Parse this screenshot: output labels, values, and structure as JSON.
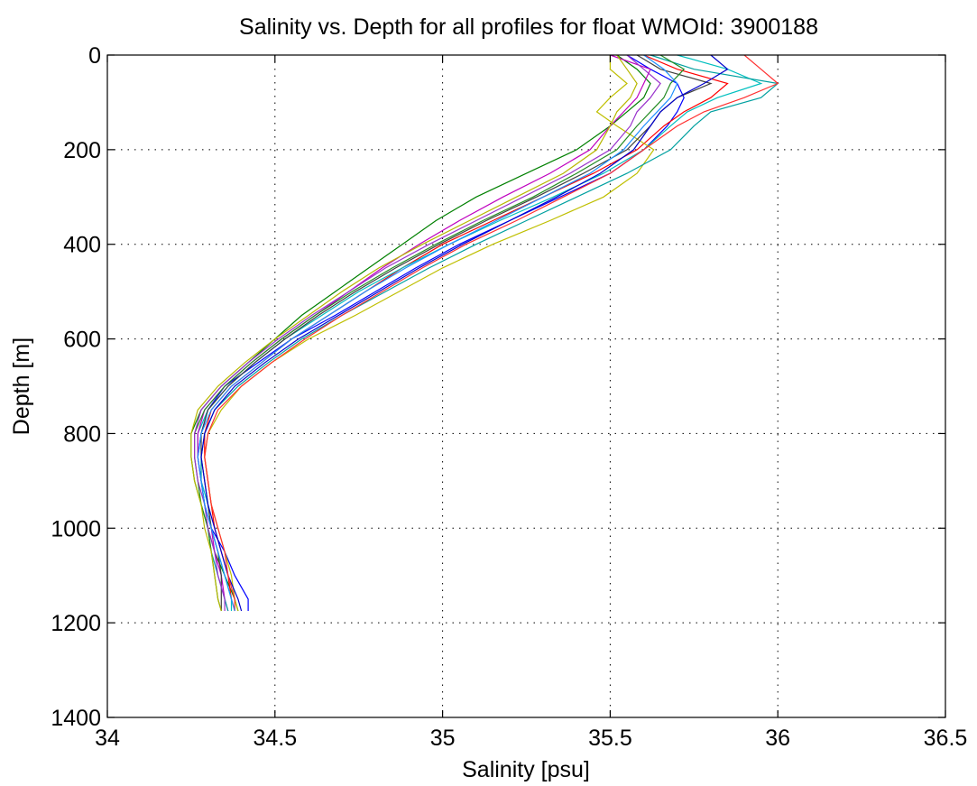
{
  "chart_data": {
    "type": "line",
    "title": "Salinity vs. Depth for all profiles for float WMOId: 3900188",
    "xlabel": "Salinity [psu]",
    "ylabel": "Depth [m]",
    "xlim": [
      34,
      36.5
    ],
    "ylim": [
      0,
      1400
    ],
    "y_reversed": true,
    "grid": true,
    "legend": "none",
    "x_ticks": [
      "34",
      "34.5",
      "35",
      "35.5",
      "36",
      "36.5"
    ],
    "y_ticks": [
      "0",
      "200",
      "400",
      "600",
      "800",
      "1000",
      "1200",
      "1400"
    ],
    "depth": [
      0,
      30,
      60,
      90,
      120,
      150,
      200,
      250,
      300,
      350,
      400,
      450,
      500,
      550,
      600,
      650,
      700,
      750,
      800,
      850,
      900,
      950,
      1000,
      1050,
      1100,
      1150,
      1175
    ],
    "series": [
      {
        "color": "#0000ff",
        "values": [
          35.55,
          35.62,
          35.7,
          35.72,
          35.7,
          35.67,
          35.6,
          35.5,
          35.35,
          35.2,
          35.05,
          34.92,
          34.8,
          34.68,
          34.55,
          34.45,
          34.35,
          34.3,
          34.28,
          34.27,
          34.28,
          34.29,
          34.31,
          34.35,
          34.38,
          34.42,
          34.42
        ]
      },
      {
        "color": "#008000",
        "values": [
          35.52,
          35.58,
          35.62,
          35.6,
          35.55,
          35.5,
          35.4,
          35.25,
          35.1,
          34.98,
          34.88,
          34.78,
          34.68,
          34.58,
          34.5,
          34.42,
          34.34,
          34.28,
          34.25,
          34.25,
          34.26,
          34.28,
          34.3,
          34.32,
          34.35,
          34.38,
          34.39
        ]
      },
      {
        "color": "#ff0000",
        "values": [
          35.6,
          35.7,
          35.85,
          35.8,
          35.72,
          35.66,
          35.58,
          35.45,
          35.3,
          35.15,
          35.0,
          34.88,
          34.77,
          34.66,
          34.55,
          34.46,
          34.37,
          34.31,
          34.29,
          34.29,
          34.3,
          34.31,
          34.32,
          34.34,
          34.36,
          34.37,
          34.38
        ]
      },
      {
        "color": "#00bfbf",
        "values": [
          35.7,
          35.85,
          35.95,
          35.82,
          35.73,
          35.68,
          35.6,
          35.48,
          35.33,
          35.17,
          35.02,
          34.88,
          34.75,
          34.64,
          34.53,
          34.44,
          34.36,
          34.3,
          34.27,
          34.27,
          34.28,
          34.3,
          34.31,
          34.33,
          34.35,
          34.37,
          34.37
        ]
      },
      {
        "color": "#bf00bf",
        "values": [
          35.5,
          35.62,
          35.6,
          35.58,
          35.54,
          35.5,
          35.44,
          35.32,
          35.18,
          35.05,
          34.93,
          34.82,
          34.72,
          34.62,
          34.52,
          34.43,
          34.35,
          34.29,
          34.27,
          34.27,
          34.28,
          34.29,
          34.31,
          34.32,
          34.34,
          34.35,
          34.36
        ]
      },
      {
        "color": "#bfbf00",
        "values": [
          35.5,
          35.5,
          35.55,
          35.5,
          35.46,
          35.52,
          35.63,
          35.58,
          35.48,
          35.32,
          35.15,
          35.0,
          34.87,
          34.74,
          34.6,
          34.49,
          34.4,
          34.34,
          34.3,
          34.29,
          34.3,
          34.31,
          34.33,
          34.35,
          34.37,
          34.38,
          34.39
        ]
      },
      {
        "color": "#3f3f3f",
        "values": [
          35.58,
          35.65,
          35.8,
          35.7,
          35.65,
          35.62,
          35.55,
          35.42,
          35.28,
          35.13,
          34.99,
          34.86,
          34.74,
          34.63,
          34.53,
          34.44,
          34.36,
          34.3,
          34.28,
          34.28,
          34.29,
          34.3,
          34.31,
          34.33,
          34.34,
          34.34,
          34.34
        ]
      },
      {
        "color": "#00a0a0",
        "values": [
          35.62,
          35.75,
          36.0,
          35.95,
          35.8,
          35.75,
          35.68,
          35.55,
          35.4,
          35.25,
          35.1,
          34.96,
          34.83,
          34.7,
          34.58,
          34.48,
          34.39,
          34.32,
          34.29,
          34.28,
          34.28,
          34.29,
          34.3,
          34.31,
          34.33,
          34.35,
          34.36
        ]
      },
      {
        "color": "#0000cc",
        "values": [
          35.8,
          35.85,
          35.78,
          35.7,
          35.65,
          35.62,
          35.57,
          35.47,
          35.34,
          35.2,
          35.06,
          34.93,
          34.81,
          34.69,
          34.57,
          34.47,
          34.38,
          34.32,
          34.29,
          34.28,
          34.29,
          34.3,
          34.32,
          34.34,
          34.36,
          34.39,
          34.4
        ]
      },
      {
        "color": "#228b22",
        "values": [
          35.65,
          35.72,
          35.68,
          35.66,
          35.62,
          35.58,
          35.52,
          35.4,
          35.27,
          35.12,
          34.98,
          34.85,
          34.73,
          34.62,
          34.52,
          34.43,
          34.35,
          34.29,
          34.26,
          34.26,
          34.27,
          34.28,
          34.3,
          34.31,
          34.32,
          34.33,
          34.34
        ]
      },
      {
        "color": "#ff3030",
        "values": [
          35.9,
          35.95,
          36.0,
          35.9,
          35.78,
          35.7,
          35.6,
          35.5,
          35.36,
          35.22,
          35.07,
          34.94,
          34.82,
          34.7,
          34.59,
          34.49,
          34.4,
          34.33,
          34.3,
          34.29,
          34.3,
          34.31,
          34.33,
          34.35,
          34.36,
          34.38,
          34.38
        ]
      },
      {
        "color": "#9932cc",
        "values": [
          35.55,
          35.6,
          35.65,
          35.62,
          35.58,
          35.56,
          35.5,
          35.38,
          35.24,
          35.1,
          34.96,
          34.83,
          34.72,
          34.61,
          34.51,
          34.42,
          34.34,
          34.28,
          34.26,
          34.26,
          34.27,
          34.29,
          34.3,
          34.32,
          34.33,
          34.35,
          34.35
        ]
      },
      {
        "color": "#b8b800",
        "values": [
          35.52,
          35.55,
          35.58,
          35.56,
          35.52,
          35.5,
          35.46,
          35.36,
          35.22,
          35.08,
          34.94,
          34.81,
          34.7,
          34.6,
          34.5,
          34.41,
          34.33,
          34.27,
          34.25,
          34.25,
          34.26,
          34.28,
          34.29,
          34.31,
          34.32,
          34.33,
          34.34
        ]
      },
      {
        "color": "#1e90ff",
        "values": [
          35.6,
          35.66,
          35.7,
          35.68,
          35.64,
          35.6,
          35.54,
          35.44,
          35.3,
          35.16,
          35.02,
          34.89,
          34.77,
          34.66,
          34.55,
          34.46,
          34.37,
          34.31,
          34.28,
          34.27,
          34.28,
          34.29,
          34.31,
          34.33,
          34.35,
          34.37,
          34.38
        ]
      }
    ]
  }
}
